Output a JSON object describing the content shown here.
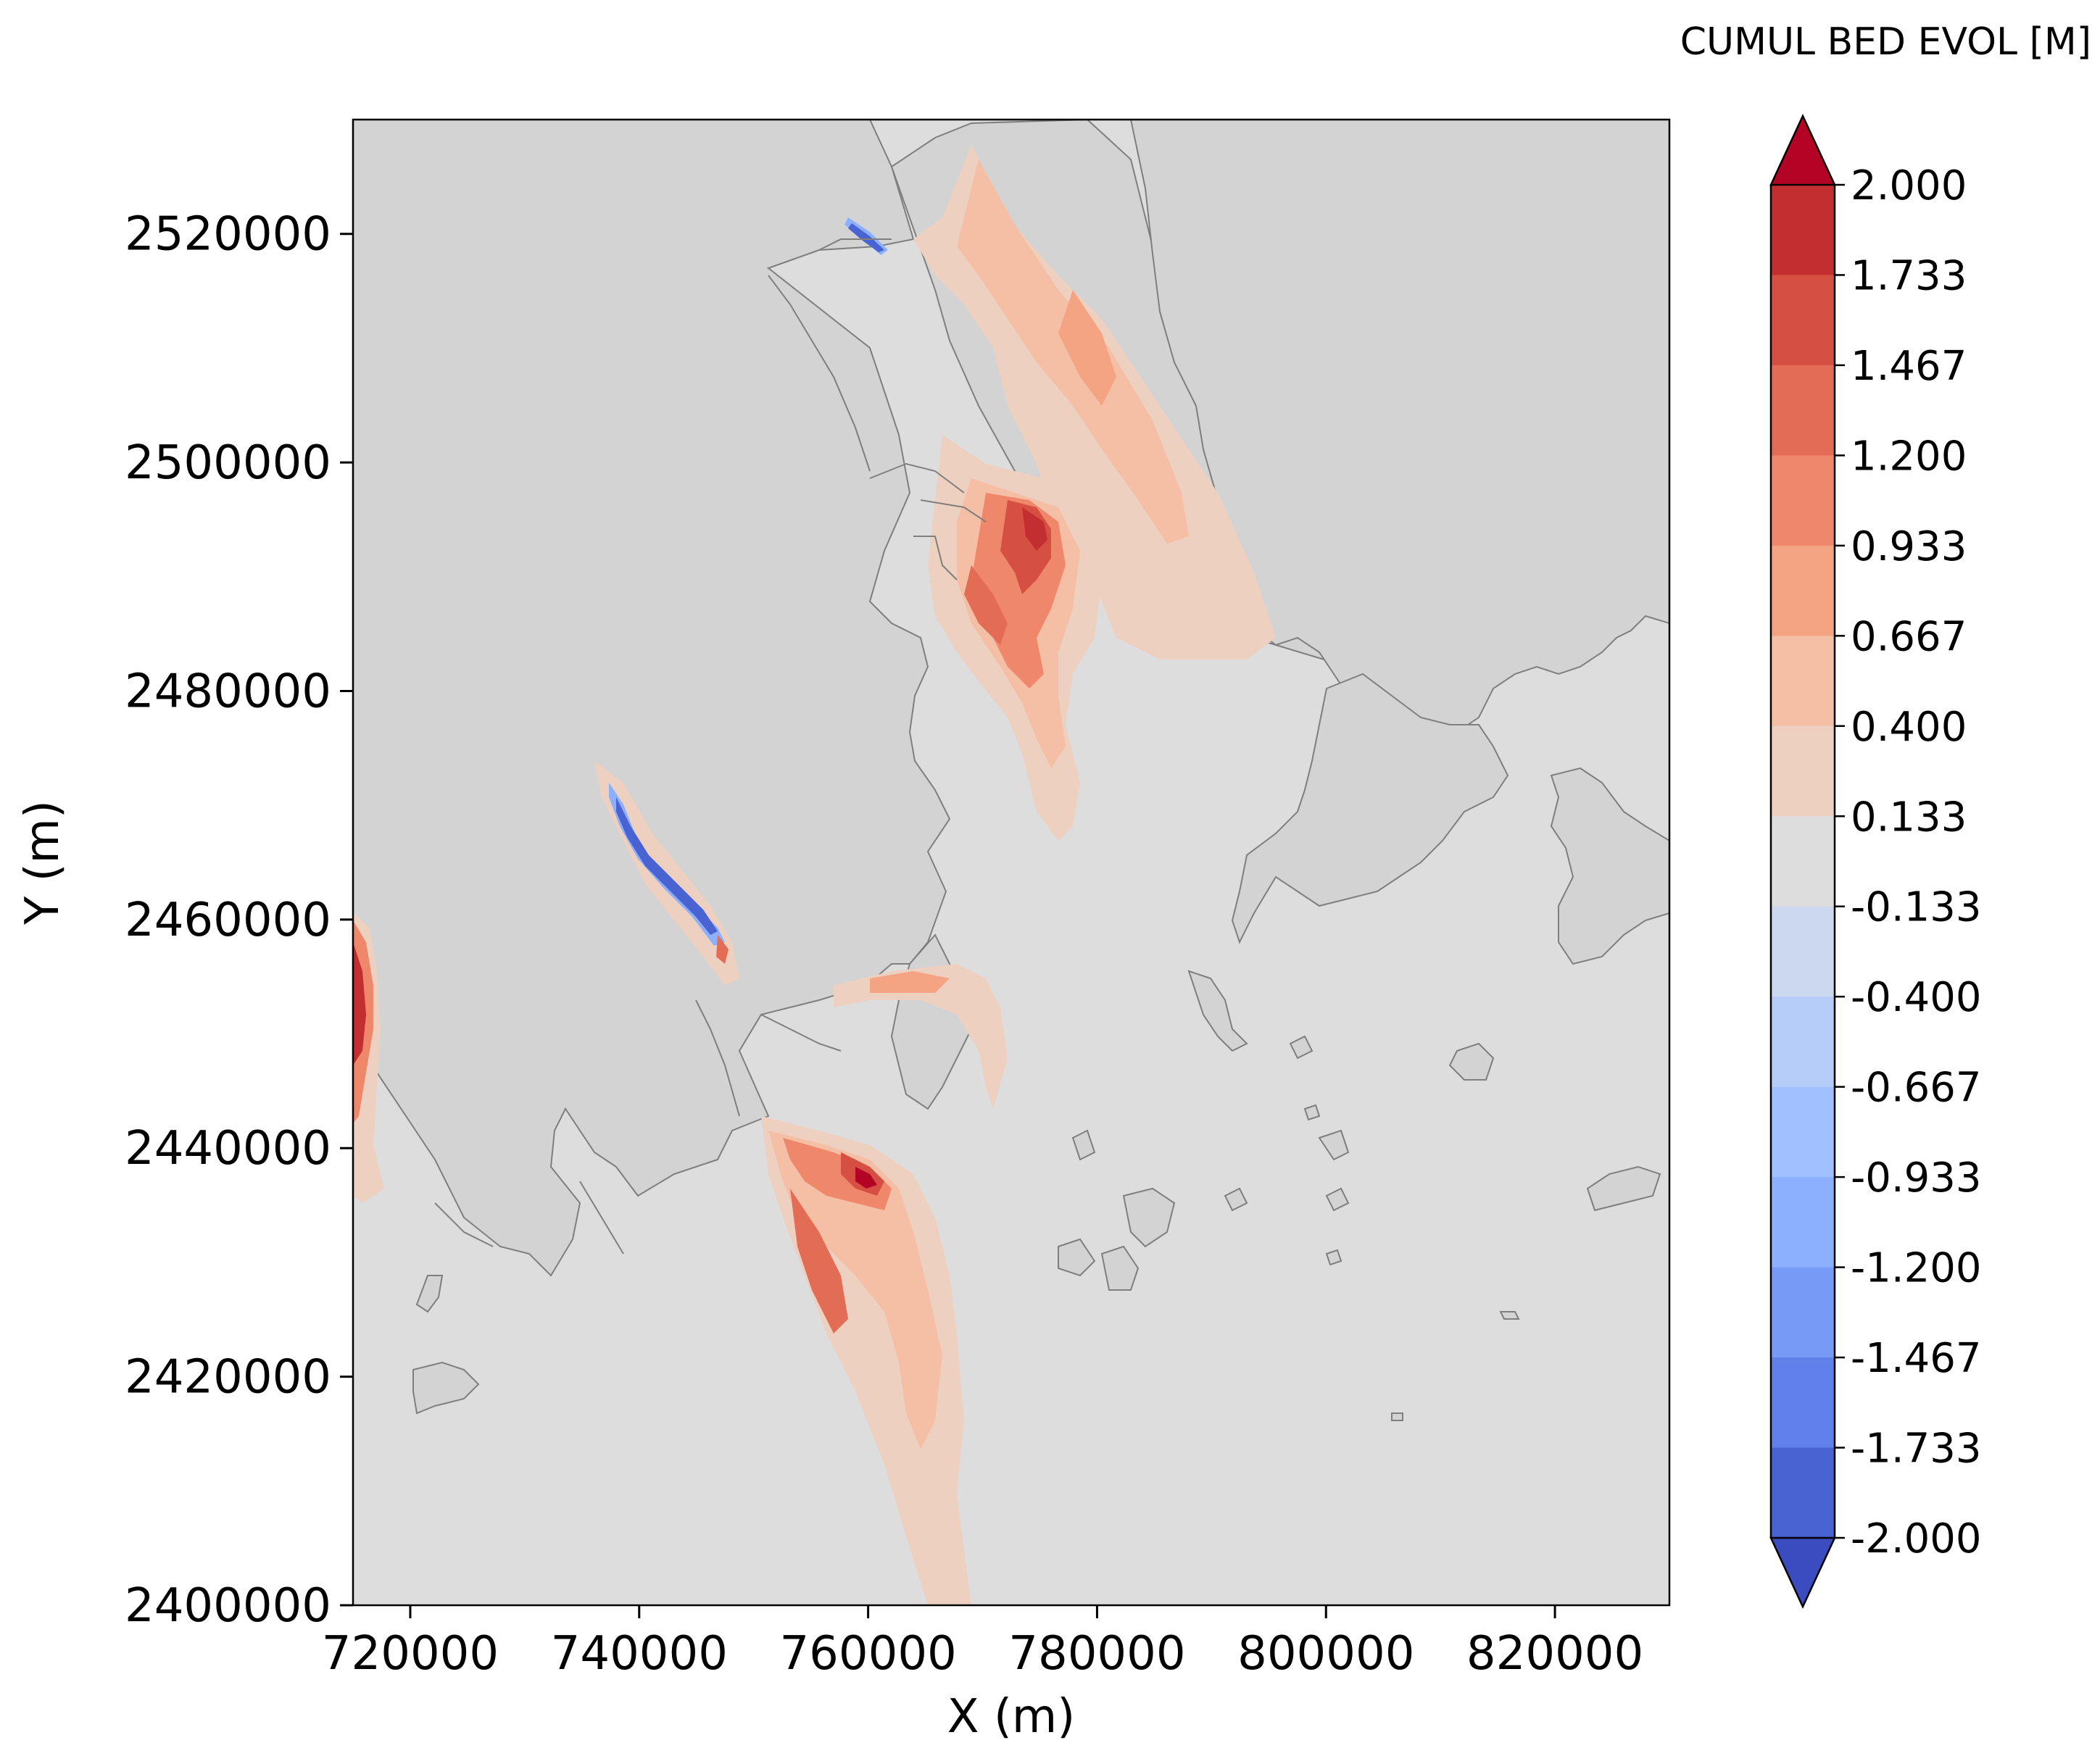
{
  "chart_data": {
    "type": "heatmap",
    "xlabel": "X (m)",
    "ylabel": "Y (m)",
    "xlim": [
      715000,
      830000
    ],
    "ylim": [
      2400000,
      2530000
    ],
    "x_ticks": [
      720000,
      740000,
      760000,
      780000,
      800000,
      820000
    ],
    "y_ticks": [
      2400000,
      2420000,
      2440000,
      2460000,
      2480000,
      2500000,
      2520000
    ],
    "x_tick_labels": [
      "720000",
      "740000",
      "760000",
      "780000",
      "800000",
      "820000"
    ],
    "y_tick_labels": [
      "2400000",
      "2420000",
      "2440000",
      "2460000",
      "2480000",
      "2500000",
      "2520000"
    ],
    "colorbar": {
      "title": "CUMUL BED EVOL [M]",
      "levels": [
        -2.0,
        -1.733,
        -1.467,
        -1.2,
        -0.933,
        -0.667,
        -0.4,
        -0.133,
        0.133,
        0.4,
        0.667,
        0.933,
        1.2,
        1.467,
        1.733,
        2.0
      ],
      "tick_labels": [
        "2.000",
        "1.733",
        "1.467",
        "1.200",
        "0.933",
        "0.667",
        "0.400",
        "0.133",
        "-0.133",
        "-0.400",
        "-0.667",
        "-0.933",
        "-1.200",
        "-1.467",
        "-1.733",
        "-2.000"
      ],
      "colors": [
        "#b40426",
        "#c32e31",
        "#d55042",
        "#e36c55",
        "#ef886b",
        "#f4a383",
        "#f5bfa6",
        "#eed0c0",
        "#dddddd",
        "#cbd8ee",
        "#b6cdfa",
        "#a1c0ff",
        "#8db0fe",
        "#779af7",
        "#6180e9",
        "#4a63d3",
        "#3b4cc0"
      ],
      "extend": "both",
      "colormap": "coolwarm"
    },
    "colors": {
      "land": "#d3d3d3",
      "water_neutral": "#dddddd",
      "coastline": "#7f7f7f"
    }
  }
}
